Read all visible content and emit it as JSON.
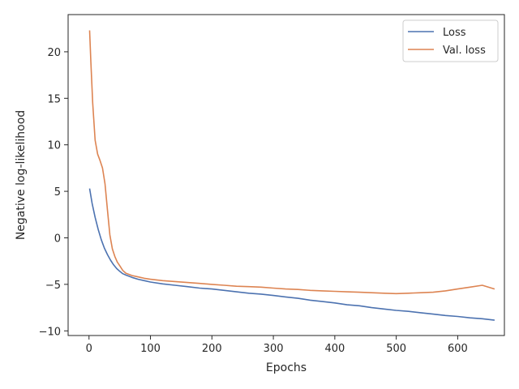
{
  "chart_data": {
    "type": "line",
    "title": "",
    "xlabel": "Epochs",
    "ylabel": "Negative log-likelihood",
    "xlim": [
      -34,
      676
    ],
    "ylim": [
      -10.5,
      24
    ],
    "xticks": [
      0,
      100,
      200,
      300,
      400,
      500,
      600
    ],
    "yticks": [
      -10,
      -5,
      0,
      5,
      10,
      15,
      20
    ],
    "grid": false,
    "legend": "top-right",
    "series": [
      {
        "name": "Loss",
        "color": "#4c72b0",
        "x": [
          1,
          5,
          10,
          15,
          20,
          25,
          30,
          35,
          40,
          45,
          50,
          55,
          60,
          70,
          80,
          90,
          100,
          120,
          140,
          160,
          180,
          200,
          220,
          240,
          260,
          280,
          300,
          320,
          340,
          360,
          380,
          400,
          420,
          440,
          460,
          480,
          500,
          520,
          540,
          560,
          580,
          600,
          620,
          640,
          660
        ],
        "y": [
          5.3,
          3.7,
          2.2,
          0.9,
          -0.2,
          -1.1,
          -1.8,
          -2.4,
          -2.9,
          -3.3,
          -3.6,
          -3.85,
          -4.0,
          -4.25,
          -4.45,
          -4.6,
          -4.75,
          -4.95,
          -5.1,
          -5.25,
          -5.4,
          -5.5,
          -5.65,
          -5.8,
          -5.95,
          -6.05,
          -6.2,
          -6.35,
          -6.5,
          -6.7,
          -6.85,
          -7.0,
          -7.2,
          -7.3,
          -7.5,
          -7.65,
          -7.8,
          -7.9,
          -8.05,
          -8.2,
          -8.35,
          -8.45,
          -8.6,
          -8.7,
          -8.85
        ]
      },
      {
        "name": "Val. loss",
        "color": "#dd8452",
        "x": [
          1,
          3,
          6,
          10,
          14,
          18,
          22,
          26,
          30,
          34,
          38,
          42,
          46,
          50,
          55,
          60,
          70,
          80,
          90,
          100,
          120,
          140,
          160,
          180,
          200,
          220,
          240,
          260,
          280,
          300,
          320,
          340,
          360,
          380,
          400,
          420,
          440,
          460,
          480,
          500,
          520,
          540,
          560,
          580,
          600,
          620,
          640,
          660
        ],
        "y": [
          22.3,
          19.0,
          14.5,
          10.5,
          9.0,
          8.3,
          7.5,
          5.8,
          3.0,
          0.3,
          -1.2,
          -2.0,
          -2.6,
          -3.0,
          -3.5,
          -3.8,
          -4.05,
          -4.2,
          -4.35,
          -4.45,
          -4.6,
          -4.7,
          -4.8,
          -4.9,
          -5.0,
          -5.1,
          -5.2,
          -5.25,
          -5.3,
          -5.4,
          -5.5,
          -5.55,
          -5.65,
          -5.7,
          -5.75,
          -5.8,
          -5.85,
          -5.9,
          -5.95,
          -6.0,
          -5.95,
          -5.9,
          -5.85,
          -5.7,
          -5.5,
          -5.3,
          -5.1,
          -5.5
        ]
      }
    ]
  }
}
